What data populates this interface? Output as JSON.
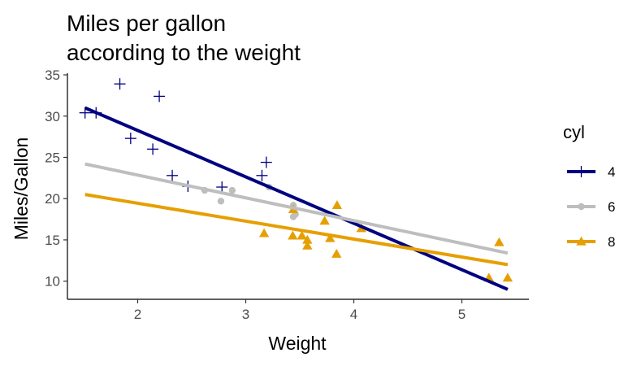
{
  "chart_data": {
    "type": "scatter",
    "title_lines": [
      "Miles per gallon",
      "according to the weight"
    ],
    "xlabel": "Weight",
    "ylabel": "Miles/Gallon",
    "xlim": [
      1.35,
      5.62
    ],
    "ylim": [
      7.8,
      35.2
    ],
    "x_ticks": [
      2,
      3,
      4,
      5
    ],
    "y_ticks": [
      10,
      15,
      20,
      25,
      30,
      35
    ],
    "grid": false,
    "legend": {
      "title": "cyl",
      "placement": "right"
    },
    "series": [
      {
        "name": "4",
        "color": "#000080",
        "marker": "plus",
        "points": [
          {
            "x": 1.513,
            "y": 30.4
          },
          {
            "x": 1.615,
            "y": 30.4
          },
          {
            "x": 1.835,
            "y": 33.9
          },
          {
            "x": 1.935,
            "y": 27.3
          },
          {
            "x": 2.14,
            "y": 26.0
          },
          {
            "x": 2.2,
            "y": 32.4
          },
          {
            "x": 2.32,
            "y": 22.8
          },
          {
            "x": 2.465,
            "y": 21.5
          },
          {
            "x": 2.78,
            "y": 21.4
          },
          {
            "x": 3.15,
            "y": 22.8
          },
          {
            "x": 3.19,
            "y": 24.4
          }
        ],
        "fit": {
          "x": [
            1.513,
            5.424
          ],
          "y": [
            31.0,
            9.0
          ]
        }
      },
      {
        "name": "6",
        "color": "#bebebe",
        "marker": "circle",
        "points": [
          {
            "x": 2.62,
            "y": 21.0
          },
          {
            "x": 2.77,
            "y": 19.7
          },
          {
            "x": 2.875,
            "y": 21.0
          },
          {
            "x": 3.215,
            "y": 21.4
          },
          {
            "x": 3.44,
            "y": 19.2
          },
          {
            "x": 3.44,
            "y": 17.8
          },
          {
            "x": 3.46,
            "y": 18.1
          }
        ],
        "fit": {
          "x": [
            1.513,
            5.424
          ],
          "y": [
            24.2,
            13.4
          ]
        }
      },
      {
        "name": "8",
        "color": "#e69f00",
        "marker": "triangle",
        "points": [
          {
            "x": 3.17,
            "y": 15.8
          },
          {
            "x": 3.435,
            "y": 15.5
          },
          {
            "x": 3.44,
            "y": 18.7
          },
          {
            "x": 3.52,
            "y": 15.5
          },
          {
            "x": 3.57,
            "y": 14.3
          },
          {
            "x": 3.57,
            "y": 15.0
          },
          {
            "x": 3.73,
            "y": 17.3
          },
          {
            "x": 3.78,
            "y": 15.2
          },
          {
            "x": 3.84,
            "y": 13.3
          },
          {
            "x": 3.845,
            "y": 19.2
          },
          {
            "x": 4.07,
            "y": 16.4
          },
          {
            "x": 5.25,
            "y": 10.4
          },
          {
            "x": 5.345,
            "y": 14.7
          },
          {
            "x": 5.424,
            "y": 10.4
          }
        ],
        "fit": {
          "x": [
            1.513,
            5.424
          ],
          "y": [
            20.5,
            12.0
          ]
        }
      }
    ]
  }
}
